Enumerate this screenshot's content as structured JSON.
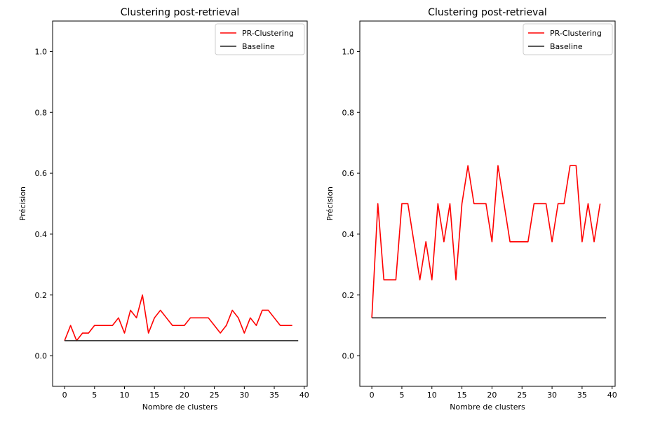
{
  "chart_data": [
    {
      "type": "line",
      "title": "Clustering post-retrieval",
      "xlabel": "Nombre de clusters",
      "ylabel": "Précision",
      "xlim": [
        -2,
        40.5
      ],
      "ylim": [
        -0.1,
        1.1
      ],
      "xticks": [
        0,
        5,
        10,
        15,
        20,
        25,
        30,
        35,
        40
      ],
      "yticks": [
        0.0,
        0.2,
        0.4,
        0.6,
        0.8,
        1.0
      ],
      "xtick_labels": [
        "0",
        "5",
        "10",
        "15",
        "20",
        "25",
        "30",
        "35",
        "40"
      ],
      "ytick_labels": [
        "0.0",
        "0.2",
        "0.4",
        "0.6",
        "0.8",
        "1.0"
      ],
      "grid": false,
      "legend_position": "top-right",
      "series": [
        {
          "name": "PR-Clustering",
          "color": "#ff0000",
          "x": [
            0,
            1,
            2,
            3,
            4,
            5,
            6,
            7,
            8,
            9,
            10,
            11,
            12,
            13,
            14,
            15,
            16,
            17,
            18,
            19,
            20,
            21,
            22,
            23,
            24,
            25,
            26,
            27,
            28,
            29,
            30,
            31,
            32,
            33,
            34,
            35,
            36,
            37,
            38
          ],
          "y": [
            0.05,
            0.1,
            0.05,
            0.075,
            0.075,
            0.1,
            0.1,
            0.1,
            0.1,
            0.125,
            0.075,
            0.15,
            0.125,
            0.2,
            0.075,
            0.125,
            0.15,
            0.125,
            0.1,
            0.1,
            0.1,
            0.125,
            0.125,
            0.125,
            0.125,
            0.1,
            0.075,
            0.1,
            0.15,
            0.125,
            0.075,
            0.125,
            0.1,
            0.15,
            0.15,
            0.125,
            0.1,
            0.1,
            0.1
          ]
        },
        {
          "name": "Baseline",
          "color": "#222222",
          "x": [
            0,
            39
          ],
          "y": [
            0.05,
            0.05
          ]
        }
      ]
    },
    {
      "type": "line",
      "title": "Clustering post-retrieval",
      "xlabel": "Nombre de clusters",
      "ylabel": "Précision",
      "xlim": [
        -2,
        40.5
      ],
      "ylim": [
        -0.1,
        1.1
      ],
      "xticks": [
        0,
        5,
        10,
        15,
        20,
        25,
        30,
        35,
        40
      ],
      "yticks": [
        0.0,
        0.2,
        0.4,
        0.6,
        0.8,
        1.0
      ],
      "xtick_labels": [
        "0",
        "5",
        "10",
        "15",
        "20",
        "25",
        "30",
        "35",
        "40"
      ],
      "ytick_labels": [
        "0.0",
        "0.2",
        "0.4",
        "0.6",
        "0.8",
        "1.0"
      ],
      "grid": false,
      "legend_position": "top-right",
      "series": [
        {
          "name": "PR-Clustering",
          "color": "#ff0000",
          "x": [
            0,
            1,
            2,
            3,
            4,
            5,
            6,
            7,
            8,
            9,
            10,
            11,
            12,
            13,
            14,
            15,
            16,
            17,
            18,
            19,
            20,
            21,
            22,
            23,
            24,
            25,
            26,
            27,
            28,
            29,
            30,
            31,
            32,
            33,
            34,
            35,
            36,
            37,
            38
          ],
          "y": [
            0.125,
            0.5,
            0.25,
            0.25,
            0.25,
            0.5,
            0.5,
            0.375,
            0.25,
            0.375,
            0.25,
            0.5,
            0.375,
            0.5,
            0.25,
            0.5,
            0.625,
            0.5,
            0.5,
            0.5,
            0.375,
            0.625,
            0.5,
            0.375,
            0.375,
            0.375,
            0.375,
            0.5,
            0.5,
            0.5,
            0.375,
            0.5,
            0.5,
            0.625,
            0.625,
            0.375,
            0.5,
            0.375,
            0.5
          ]
        },
        {
          "name": "Baseline",
          "color": "#222222",
          "x": [
            0,
            39
          ],
          "y": [
            0.125,
            0.125
          ]
        }
      ]
    }
  ]
}
